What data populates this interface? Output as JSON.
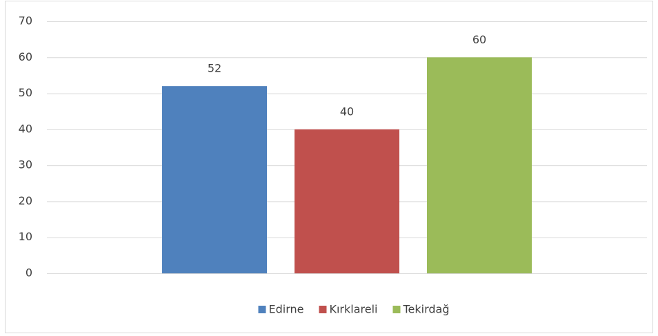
{
  "chart_data": {
    "type": "bar",
    "categories": [
      null
    ],
    "series": [
      {
        "name": "Edirne",
        "color": "#4f81bd",
        "values": [
          52
        ]
      },
      {
        "name": "Kırklareli",
        "color": "#c0504d",
        "values": [
          40
        ]
      },
      {
        "name": "Tekirdağ",
        "color": "#9bbb59",
        "values": [
          60
        ]
      }
    ],
    "ylim": [
      0,
      70
    ],
    "yticks": [
      0,
      10,
      20,
      30,
      40,
      50,
      60,
      70
    ],
    "grid": true,
    "legend": "bottom"
  }
}
